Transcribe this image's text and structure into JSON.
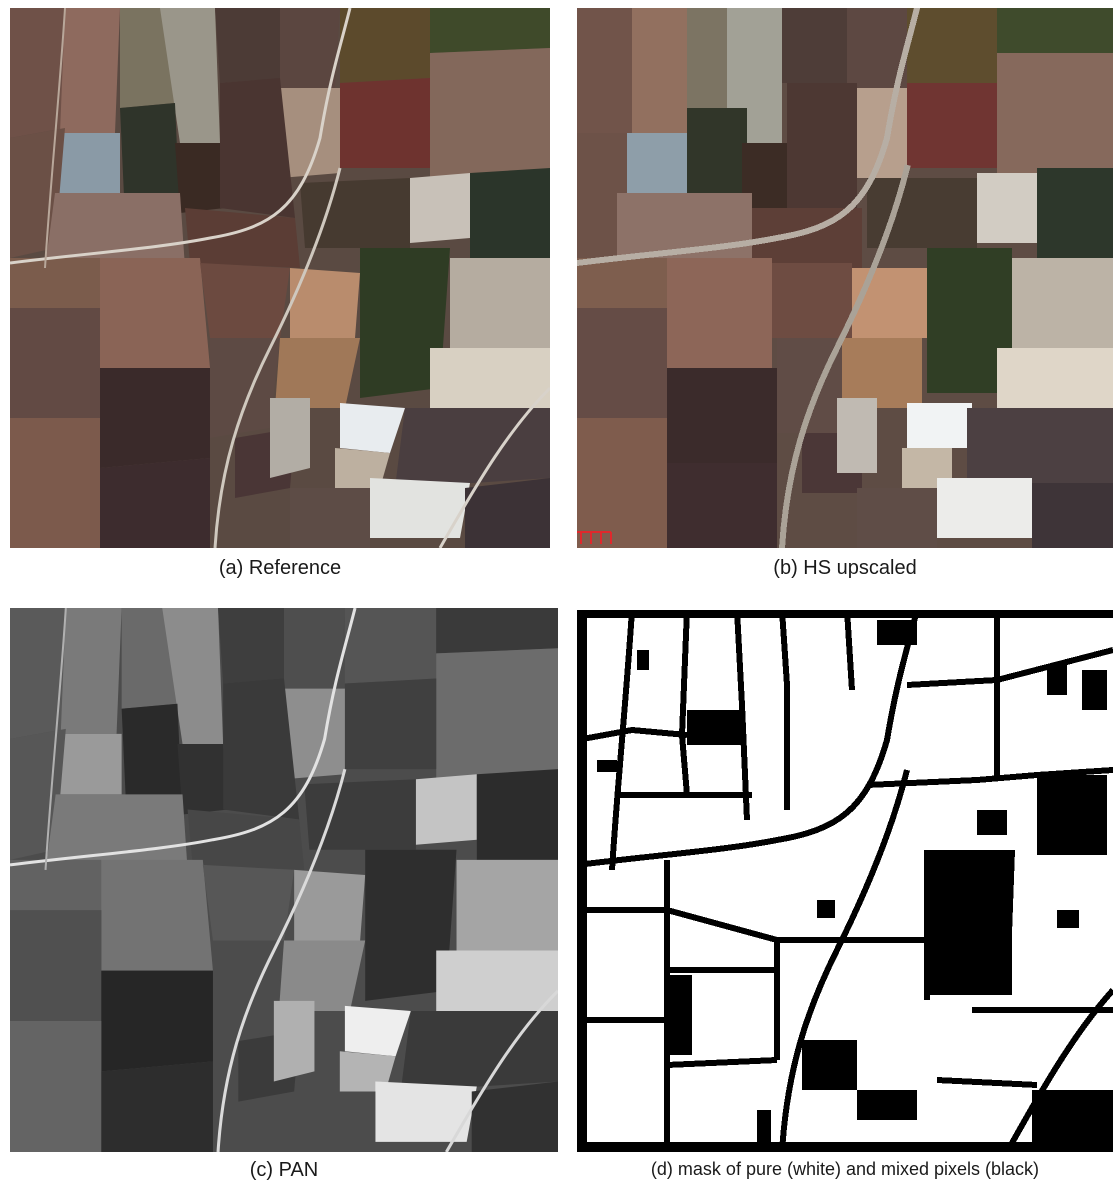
{
  "figure": {
    "panels": [
      {
        "id": "a",
        "caption": "(a) Reference",
        "image": "reference-aerial-color"
      },
      {
        "id": "b",
        "caption": "(b) HS upscaled",
        "image": "hyperspectral-upscaled-color"
      },
      {
        "id": "c",
        "caption": "(c) PAN",
        "image": "panchromatic-grayscale"
      },
      {
        "id": "d",
        "caption": "(d) mask of pure (white) and mixed pixels (black)",
        "image": "binary-mask"
      }
    ],
    "colors": {
      "background": "#ffffff",
      "caption_text": "#1a1a1a",
      "scale_bar": "#e0282c"
    }
  }
}
